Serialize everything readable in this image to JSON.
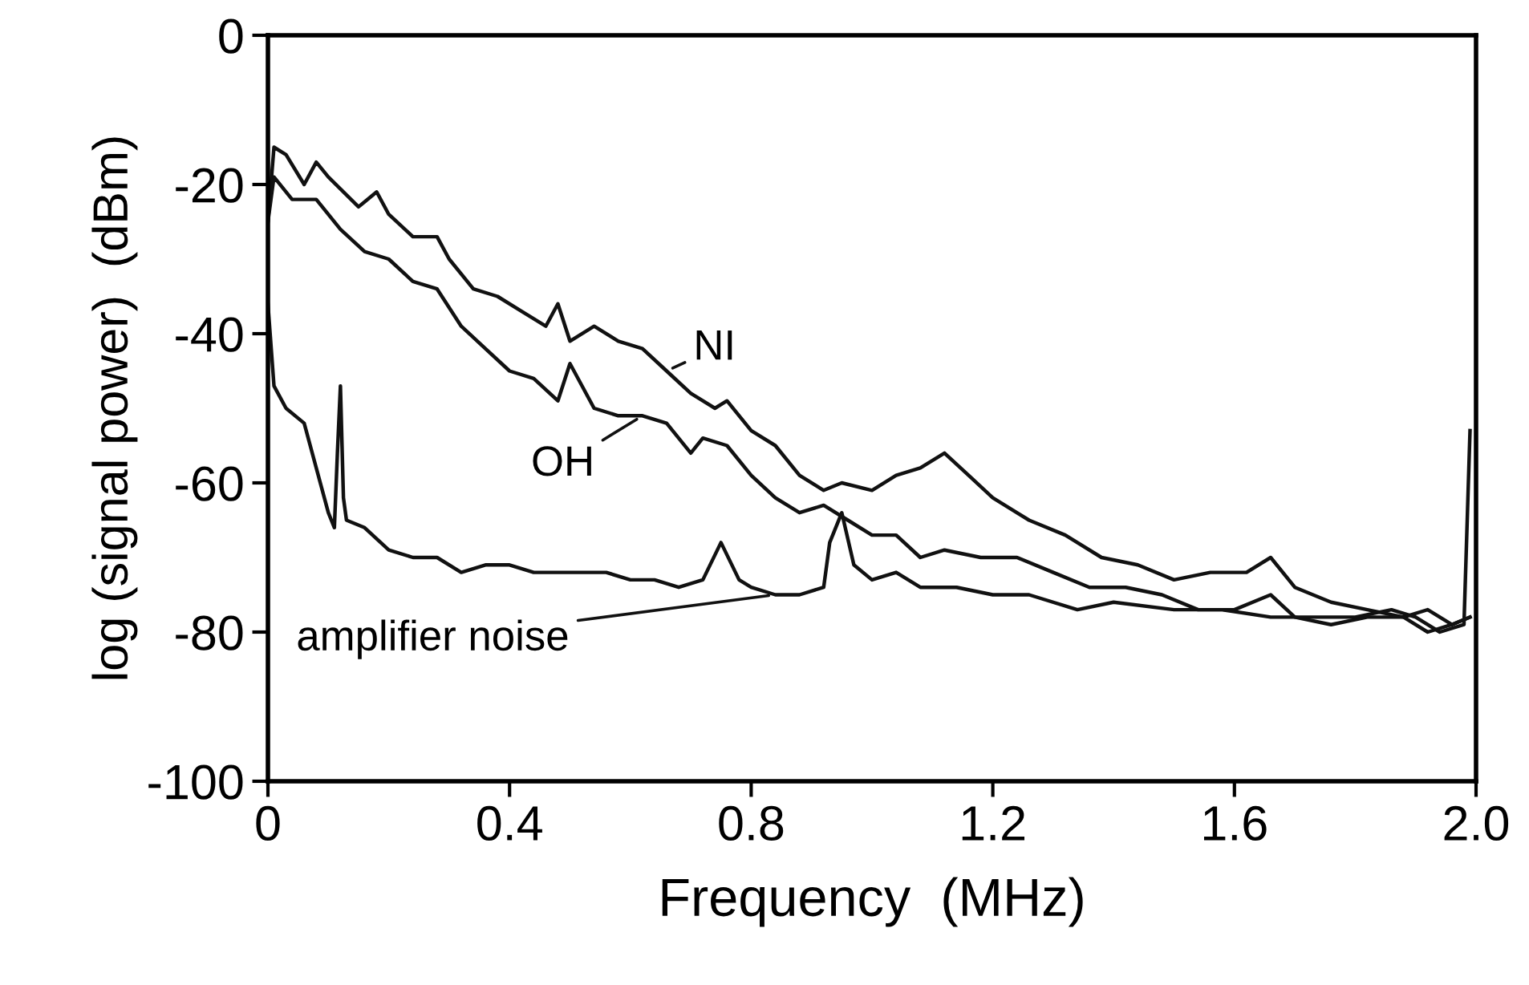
{
  "chart_data": {
    "type": "line",
    "xlabel": "Frequency  (MHz)",
    "ylabel": "log (signal power)  (dBm)",
    "xlim": [
      0,
      2.0
    ],
    "ylim": [
      -100,
      0
    ],
    "xticks": [
      0,
      0.4,
      0.8,
      1.2,
      1.6,
      {
        "value": 2.0,
        "label": "2.0"
      }
    ],
    "yticks": [
      0,
      -20,
      -40,
      -60,
      -80,
      -100
    ],
    "grid": false,
    "legend": false,
    "marker": "none",
    "line_style": "solid",
    "series": [
      {
        "color": "#111111",
        "x": [
          0,
          0.01,
          0.03,
          0.06,
          0.08,
          0.1,
          0.15,
          0.18,
          0.2,
          0.24,
          0.28,
          0.3,
          0.34,
          0.38,
          0.42,
          0.46,
          0.48,
          0.5,
          0.54,
          0.58,
          0.62,
          0.66,
          0.7,
          0.74,
          0.76,
          0.8,
          0.84,
          0.88,
          0.92,
          0.95,
          1.0,
          1.04,
          1.08,
          1.12,
          1.16,
          1.2,
          1.26,
          1.32,
          1.38,
          1.44,
          1.5,
          1.56,
          1.62,
          1.66,
          1.7,
          1.76,
          1.82,
          1.88,
          1.92,
          1.96,
          1.99
        ],
        "values": [
          -25,
          -15,
          -16,
          -20,
          -17,
          -19,
          -23,
          -21,
          -24,
          -27,
          -27,
          -30,
          -34,
          -35,
          -37,
          -39,
          -36,
          -41,
          -39,
          -41,
          -42,
          -45,
          -48,
          -50,
          -49,
          -53,
          -55,
          -59,
          -61,
          -60,
          -61,
          -59,
          -58,
          -56,
          -59,
          -62,
          -65,
          -67,
          -70,
          -71,
          -73,
          -72,
          -72,
          -70,
          -74,
          -76,
          -77,
          -78,
          -77,
          -79,
          -78
        ]
      },
      {
        "color": "#111111",
        "x": [
          0,
          0.01,
          0.04,
          0.08,
          0.12,
          0.16,
          0.2,
          0.24,
          0.28,
          0.32,
          0.36,
          0.4,
          0.44,
          0.48,
          0.5,
          0.54,
          0.58,
          0.62,
          0.66,
          0.7,
          0.72,
          0.76,
          0.8,
          0.84,
          0.88,
          0.92,
          0.96,
          1.0,
          1.04,
          1.08,
          1.12,
          1.18,
          1.24,
          1.3,
          1.36,
          1.42,
          1.48,
          1.54,
          1.6,
          1.66,
          1.7,
          1.76,
          1.82,
          1.88,
          1.92,
          1.96,
          1.99
        ],
        "values": [
          -25,
          -19,
          -22,
          -22,
          -26,
          -29,
          -30,
          -33,
          -34,
          -39,
          -42,
          -45,
          -46,
          -49,
          -44,
          -50,
          -51,
          -51,
          -52,
          -56,
          -54,
          -55,
          -59,
          -62,
          -64,
          -63,
          -65,
          -67,
          -67,
          -70,
          -69,
          -70,
          -70,
          -72,
          -74,
          -74,
          -75,
          -77,
          -77,
          -75,
          -78,
          -79,
          -78,
          -78,
          -80,
          -79,
          -78
        ]
      },
      {
        "color": "#111111",
        "x": [
          0,
          0.01,
          0.03,
          0.06,
          0.08,
          0.1,
          0.11,
          0.115,
          0.12,
          0.125,
          0.13,
          0.16,
          0.2,
          0.24,
          0.28,
          0.32,
          0.36,
          0.4,
          0.44,
          0.48,
          0.52,
          0.56,
          0.6,
          0.64,
          0.68,
          0.72,
          0.75,
          0.78,
          0.8,
          0.84,
          0.88,
          0.92,
          0.93,
          0.95,
          0.97,
          1.0,
          1.04,
          1.08,
          1.14,
          1.2,
          1.26,
          1.34,
          1.4,
          1.5,
          1.58,
          1.66,
          1.74,
          1.8,
          1.86,
          1.9,
          1.94,
          1.98,
          1.99
        ],
        "values": [
          -36,
          -47,
          -50,
          -52,
          -58,
          -64,
          -66,
          -56,
          -47,
          -62,
          -65,
          -66,
          -69,
          -70,
          -70,
          -72,
          -71,
          -71,
          -72,
          -72,
          -72,
          -72,
          -73,
          -73,
          -74,
          -73,
          -68,
          -73,
          -74,
          -75,
          -75,
          -74,
          -68,
          -64,
          -71,
          -73,
          -72,
          -74,
          -74,
          -75,
          -75,
          -77,
          -76,
          -77,
          -77,
          -78,
          -78,
          -78,
          -77,
          -78,
          -80,
          -79,
          -53
        ]
      }
    ],
    "annotations": [
      {
        "text": "NI",
        "x": 0.66,
        "y": -45
      },
      {
        "text": "OH",
        "x": 0.62,
        "y": -51
      },
      {
        "text": "amplifier noise",
        "x": 0.84,
        "y": -75
      }
    ]
  }
}
